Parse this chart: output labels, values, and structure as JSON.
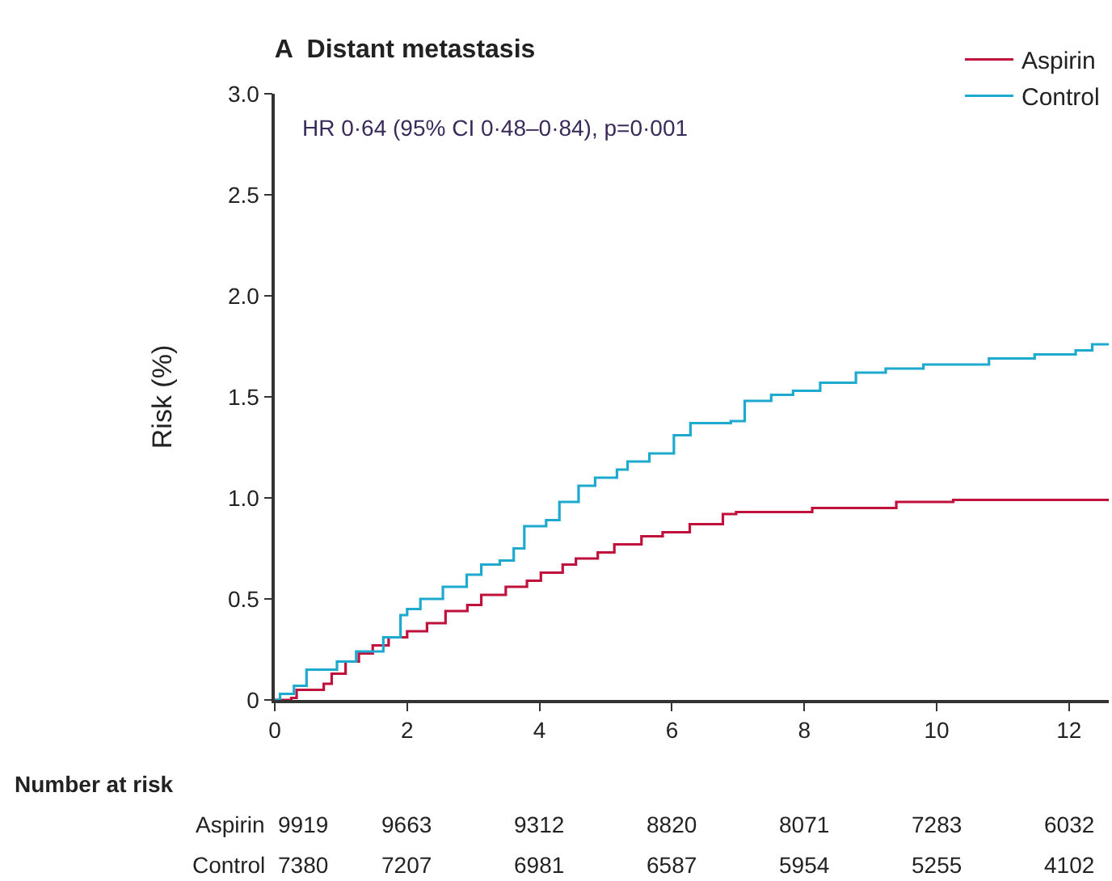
{
  "chart_data": {
    "type": "step",
    "title": "A  Distant metastasis",
    "ylabel": "Risk (%)",
    "annotations": [
      "HR 0·64 (95% CI 0·48–0·84), p=0·001",
      "Number at risk",
      "Aspirin 9919 9663 9312 8820 8071 7283 6032",
      "Control 7380 7207 6981 6587 5954 5255 4102"
    ],
    "series": [
      {
        "name": "Aspirin",
        "color": "#c0103c",
        "x": [
          0,
          0.25,
          0.33,
          0.74,
          0.86,
          1.07,
          1.27,
          1.48,
          1.72,
          2.0,
          2.3,
          2.58,
          2.91,
          3.12,
          3.49,
          3.81,
          4.02,
          4.35,
          4.55,
          4.88,
          5.13,
          5.54,
          5.86,
          6.27,
          6.77,
          6.97,
          8.12,
          9.39,
          10.25,
          12.6
        ],
        "values": [
          0,
          0.01,
          0.05,
          0.08,
          0.13,
          0.19,
          0.23,
          0.27,
          0.31,
          0.34,
          0.38,
          0.44,
          0.47,
          0.52,
          0.56,
          0.59,
          0.63,
          0.67,
          0.7,
          0.73,
          0.77,
          0.81,
          0.83,
          0.87,
          0.92,
          0.93,
          0.95,
          0.98,
          0.99,
          0.99
        ]
      },
      {
        "name": "Control",
        "color": "#1ea9cf",
        "x": [
          0,
          0.08,
          0.29,
          0.48,
          0.94,
          1.23,
          1.64,
          1.9,
          2.0,
          2.2,
          2.54,
          2.9,
          3.12,
          3.4,
          3.61,
          3.77,
          4.1,
          4.3,
          4.59,
          4.84,
          5.17,
          5.33,
          5.66,
          6.03,
          6.28,
          6.89,
          7.1,
          7.5,
          7.83,
          8.24,
          8.78,
          9.23,
          9.8,
          10.79,
          11.48,
          12.1,
          12.35,
          12.6
        ],
        "values": [
          0,
          0.03,
          0.07,
          0.15,
          0.19,
          0.24,
          0.31,
          0.42,
          0.45,
          0.5,
          0.56,
          0.62,
          0.67,
          0.69,
          0.75,
          0.86,
          0.89,
          0.98,
          1.06,
          1.1,
          1.14,
          1.18,
          1.22,
          1.31,
          1.37,
          1.38,
          1.48,
          1.51,
          1.53,
          1.57,
          1.62,
          1.64,
          1.66,
          1.69,
          1.71,
          1.73,
          1.76,
          1.76
        ]
      }
    ],
    "xlim": [
      0,
      12.6
    ],
    "xticks": [
      0,
      2,
      4,
      6,
      8,
      10,
      12
    ],
    "ylim": [
      0,
      3
    ],
    "yticks": [
      0,
      0.5,
      {
        "value": 1,
        "label": "1.0"
      },
      1.5,
      {
        "value": 2,
        "label": "2.0"
      },
      2.5,
      {
        "value": 3,
        "label": "3.0"
      }
    ],
    "legend": "top right",
    "grid": false,
    "line_style": "solid"
  }
}
